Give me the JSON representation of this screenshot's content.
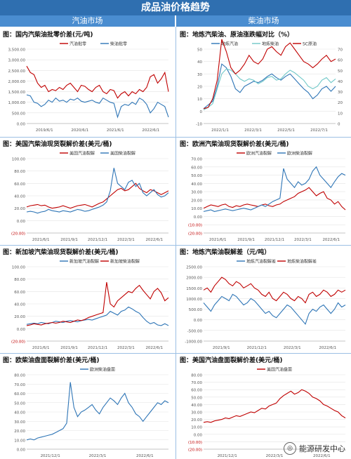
{
  "page_title": "成品油价格趋势",
  "left_header": "汽油市场",
  "right_header": "柴油市场",
  "watermark": "能源研发中心",
  "chart_data": [
    {
      "type": "line",
      "title": "图：国内汽柴油批零价差(元/吨)",
      "ylim": [
        0,
        3500
      ],
      "yticks": [
        "0.00",
        "500.00",
        "1,000.00",
        "1,500.00",
        "2,000.00",
        "2,500.00",
        "3,000.00",
        "3,500.00"
      ],
      "xticks": [
        "2019/6/1",
        "2020/6/1",
        "2021/6/1",
        "2022/6/1"
      ],
      "legend": "top",
      "series": [
        {
          "name": "汽油批零",
          "color": "#c00000",
          "values": [
            2700,
            2400,
            2300,
            1900,
            1700,
            1800,
            1500,
            1600,
            1550,
            1700,
            1600,
            1800,
            1900,
            1700,
            1500,
            1800,
            1750,
            1600,
            1500,
            1700,
            1800,
            1500,
            1400,
            1600,
            1550,
            1200,
            1400,
            1500,
            1300,
            1500,
            1400,
            1600,
            1500,
            1700,
            2200,
            2300,
            1900,
            2100,
            2400,
            1500
          ]
        },
        {
          "name": "柴油批零",
          "color": "#2e75b6",
          "values": [
            1350,
            1300,
            1000,
            950,
            800,
            900,
            1100,
            1000,
            1200,
            1050,
            1100,
            1000,
            1150,
            1100,
            1200,
            1050,
            1000,
            1050,
            1100,
            1000,
            950,
            1200,
            1100,
            1000,
            950,
            300,
            800,
            900,
            850,
            1000,
            900,
            1200,
            1100,
            900,
            500,
            700,
            1000,
            900,
            800,
            300
          ]
        }
      ]
    },
    {
      "type": "line",
      "title": "图：地炼汽柴油、原油涨跌幅对比（%）",
      "ylim": [
        -10,
        50
      ],
      "yticks": [
        "-10",
        "0",
        "10",
        "20",
        "30",
        "40",
        "50"
      ],
      "y2lim": [
        0,
        70
      ],
      "y2ticks": [
        "0",
        "10",
        "20",
        "30",
        "40",
        "50",
        "60",
        "70"
      ],
      "xticks": [
        "2022/1/1",
        "2022/3/1",
        "2022/5/1",
        "2022/7/1"
      ],
      "legend": "top",
      "series": [
        {
          "name": "地炼汽油",
          "color": "#2e75b6",
          "values": [
            2,
            5,
            8,
            20,
            38,
            35,
            28,
            18,
            15,
            20,
            22,
            24,
            23,
            25,
            28,
            30,
            27,
            25,
            28,
            30,
            26,
            22,
            18,
            15,
            10,
            13,
            18,
            20,
            16,
            20
          ]
        },
        {
          "name": "地炼柴油",
          "color": "#70c8c8",
          "values": [
            1,
            3,
            6,
            18,
            30,
            34,
            33,
            30,
            26,
            24,
            26,
            25,
            22,
            24,
            27,
            28,
            25,
            26,
            30,
            33,
            31,
            28,
            25,
            20,
            18,
            20,
            25,
            27,
            23,
            26
          ]
        },
        {
          "name": "SC原油",
          "color": "#c00000",
          "values": [
            2,
            3,
            10,
            25,
            58,
            48,
            35,
            30,
            33,
            38,
            45,
            40,
            38,
            42,
            50,
            52,
            48,
            45,
            52,
            55,
            50,
            45,
            40,
            38,
            35,
            38,
            42,
            45,
            40,
            42
          ]
        }
      ]
    },
    {
      "type": "line",
      "title": "图：美国汽柴油现货裂解价差(美元/桶)",
      "ylim": [
        -20,
        100
      ],
      "yticks": [
        "(20.00)",
        "0.00",
        "20.00",
        "40.00",
        "60.00",
        "80.00",
        "100.00"
      ],
      "xticks": [
        "2021/6/1",
        "2021/9/1",
        "2021/12/1",
        "2022/3/1",
        "2022/6/1"
      ],
      "legend": "top",
      "series": [
        {
          "name": "美国汽油裂解",
          "color": "#c00000",
          "values": [
            22,
            24,
            25,
            26,
            24,
            25,
            22,
            20,
            21,
            22,
            24,
            22,
            20,
            22,
            24,
            25,
            26,
            24,
            22,
            25,
            28,
            30,
            35,
            40,
            45,
            50,
            52,
            48,
            50,
            55,
            60,
            52,
            48,
            45,
            50,
            48,
            45,
            42,
            45,
            48
          ]
        },
        {
          "name": "美国柴油裂解",
          "color": "#2e75b6",
          "values": [
            14,
            15,
            14,
            12,
            14,
            15,
            18,
            16,
            15,
            14,
            16,
            15,
            14,
            16,
            18,
            17,
            15,
            16,
            18,
            20,
            22,
            25,
            30,
            48,
            85,
            60,
            55,
            50,
            62,
            65,
            55,
            60,
            45,
            40,
            45,
            50,
            42,
            38,
            40,
            45
          ]
        }
      ]
    },
    {
      "type": "line",
      "title": "图：欧洲汽柴油现货裂解价差(美元/桶)",
      "ylim": [
        -20,
        70
      ],
      "yticks": [
        "(20.00)",
        "(10.00)",
        "0.00",
        "10.00",
        "20.00",
        "30.00",
        "40.00",
        "50.00",
        "60.00",
        "70.00"
      ],
      "xticks": [
        "2021/6/1",
        "2021/9/1",
        "2021/12/1",
        "2022/3/1",
        "2022/6/1"
      ],
      "legend": "top",
      "series": [
        {
          "name": "欧洲汽油裂解",
          "color": "#c00000",
          "values": [
            10,
            12,
            14,
            13,
            12,
            14,
            15,
            12,
            11,
            13,
            12,
            14,
            15,
            14,
            13,
            12,
            14,
            15,
            13,
            12,
            14,
            15,
            18,
            20,
            22,
            24,
            28,
            30,
            32,
            35,
            30,
            25,
            28,
            30,
            22,
            20,
            15,
            18,
            12,
            8
          ]
        },
        {
          "name": "欧洲柴油裂解",
          "color": "#2e75b6",
          "values": [
            6,
            7,
            8,
            6,
            7,
            8,
            9,
            8,
            7,
            8,
            9,
            10,
            9,
            8,
            10,
            12,
            14,
            12,
            15,
            18,
            20,
            22,
            58,
            45,
            40,
            35,
            42,
            38,
            40,
            45,
            55,
            60,
            50,
            45,
            40,
            35,
            42,
            48,
            52,
            50
          ]
        }
      ]
    },
    {
      "type": "line",
      "title": "图：新加坡汽柴油现货裂解价差(美元/桶)",
      "ylim": [
        -20,
        100
      ],
      "yticks": [
        "(20.00)",
        "0.00",
        "20.00",
        "40.00",
        "60.00",
        "80.00",
        "100.00"
      ],
      "xticks": [
        "2021/6/1",
        "2021/9/1",
        "2021/12/1",
        "2022/3/1",
        "2022/6/1"
      ],
      "legend": "top",
      "series": [
        {
          "name": "新加坡汽油裂解",
          "color": "#2e75b6",
          "values": [
            7,
            8,
            9,
            8,
            10,
            9,
            8,
            10,
            12,
            11,
            10,
            12,
            13,
            12,
            11,
            13,
            14,
            15,
            14,
            16,
            18,
            20,
            22,
            28,
            25,
            22,
            28,
            30,
            35,
            32,
            28,
            25,
            18,
            12,
            8,
            10,
            6,
            5,
            8,
            5
          ]
        },
        {
          "name": "新加坡柴油裂解",
          "color": "#c00000",
          "values": [
            5,
            6,
            8,
            7,
            6,
            8,
            9,
            10,
            9,
            10,
            12,
            11,
            10,
            12,
            14,
            13,
            15,
            18,
            20,
            22,
            24,
            26,
            75,
            40,
            35,
            45,
            50,
            55,
            60,
            58,
            65,
            70,
            62,
            55,
            48,
            60,
            65,
            58,
            45,
            50
          ]
        }
      ]
    },
    {
      "type": "line",
      "title": "图：地炼汽柴油裂解差（元/吨）",
      "ylim": [
        -1000,
        2500
      ],
      "yticks": [
        "-1000.00",
        "-500.00",
        "0.00",
        "500.00",
        "1000.00",
        "1500.00",
        "2000.00",
        "2500.00"
      ],
      "xticks": [
        "2021/9/1",
        "2021/12/1",
        "2022/3/1",
        "2022/6/1"
      ],
      "legend": "top",
      "series": [
        {
          "name": "地炼汽油裂解差",
          "color": "#2e75b6",
          "values": [
            800,
            600,
            400,
            700,
            900,
            1100,
            1000,
            900,
            1200,
            1100,
            900,
            700,
            800,
            1000,
            900,
            700,
            500,
            300,
            400,
            200,
            100,
            300,
            500,
            700,
            600,
            400,
            200,
            0,
            -200,
            300,
            500,
            400,
            600,
            700,
            500,
            300,
            500,
            800,
            600,
            700
          ]
        },
        {
          "name": "地炼柴油裂解差",
          "color": "#c00000",
          "values": [
            1400,
            1500,
            1300,
            1600,
            1800,
            2000,
            1900,
            1700,
            1600,
            1800,
            1700,
            1500,
            1600,
            1700,
            1500,
            1400,
            1200,
            1100,
            1300,
            1000,
            900,
            1100,
            1300,
            1200,
            1000,
            900,
            1100,
            1000,
            800,
            1200,
            1300,
            1100,
            1200,
            1400,
            1300,
            1100,
            1200,
            1400,
            1300,
            1400
          ]
        }
      ]
    },
    {
      "type": "line",
      "title": "图：欧柴油盘面裂解价差(美元/桶)",
      "ylim": [
        0,
        80
      ],
      "yticks": [
        "0.00",
        "10.00",
        "20.00",
        "30.00",
        "40.00",
        "50.00",
        "60.00",
        "70.00",
        "80.00"
      ],
      "xticks": [
        "2021/12/1",
        "2022/3/1",
        "2022/6/1"
      ],
      "legend": "top",
      "series": [
        {
          "name": "欧洲柴油盘面",
          "color": "#2e75b6",
          "values": [
            10,
            11,
            10,
            12,
            13,
            14,
            15,
            16,
            18,
            20,
            22,
            28,
            72,
            45,
            35,
            40,
            42,
            45,
            48,
            42,
            38,
            45,
            50,
            55,
            52,
            48,
            55,
            60,
            50,
            45,
            38,
            35,
            30,
            35,
            40,
            45,
            50,
            48,
            52,
            50
          ]
        }
      ]
    },
    {
      "type": "line",
      "title": "图：美国汽油盘面裂解价差(美元/桶)",
      "ylim": [
        -20,
        80
      ],
      "yticks": [
        "(20.00)",
        "(10.00)",
        "0.00",
        "10.00",
        "20.00",
        "30.00",
        "40.00",
        "50.00",
        "60.00",
        "70.00",
        "80.00"
      ],
      "xticks": [
        "2021/12/1",
        "2022/3/1",
        "2022/6/1"
      ],
      "legend": "top",
      "series": [
        {
          "name": "美国汽油盘面",
          "color": "#c00000",
          "values": [
            16,
            17,
            16,
            18,
            19,
            20,
            22,
            21,
            23,
            25,
            24,
            26,
            28,
            30,
            29,
            32,
            35,
            34,
            38,
            40,
            42,
            48,
            52,
            55,
            58,
            54,
            56,
            60,
            58,
            55,
            50,
            48,
            45,
            40,
            38,
            35,
            32,
            30,
            25,
            22
          ]
        }
      ]
    }
  ]
}
